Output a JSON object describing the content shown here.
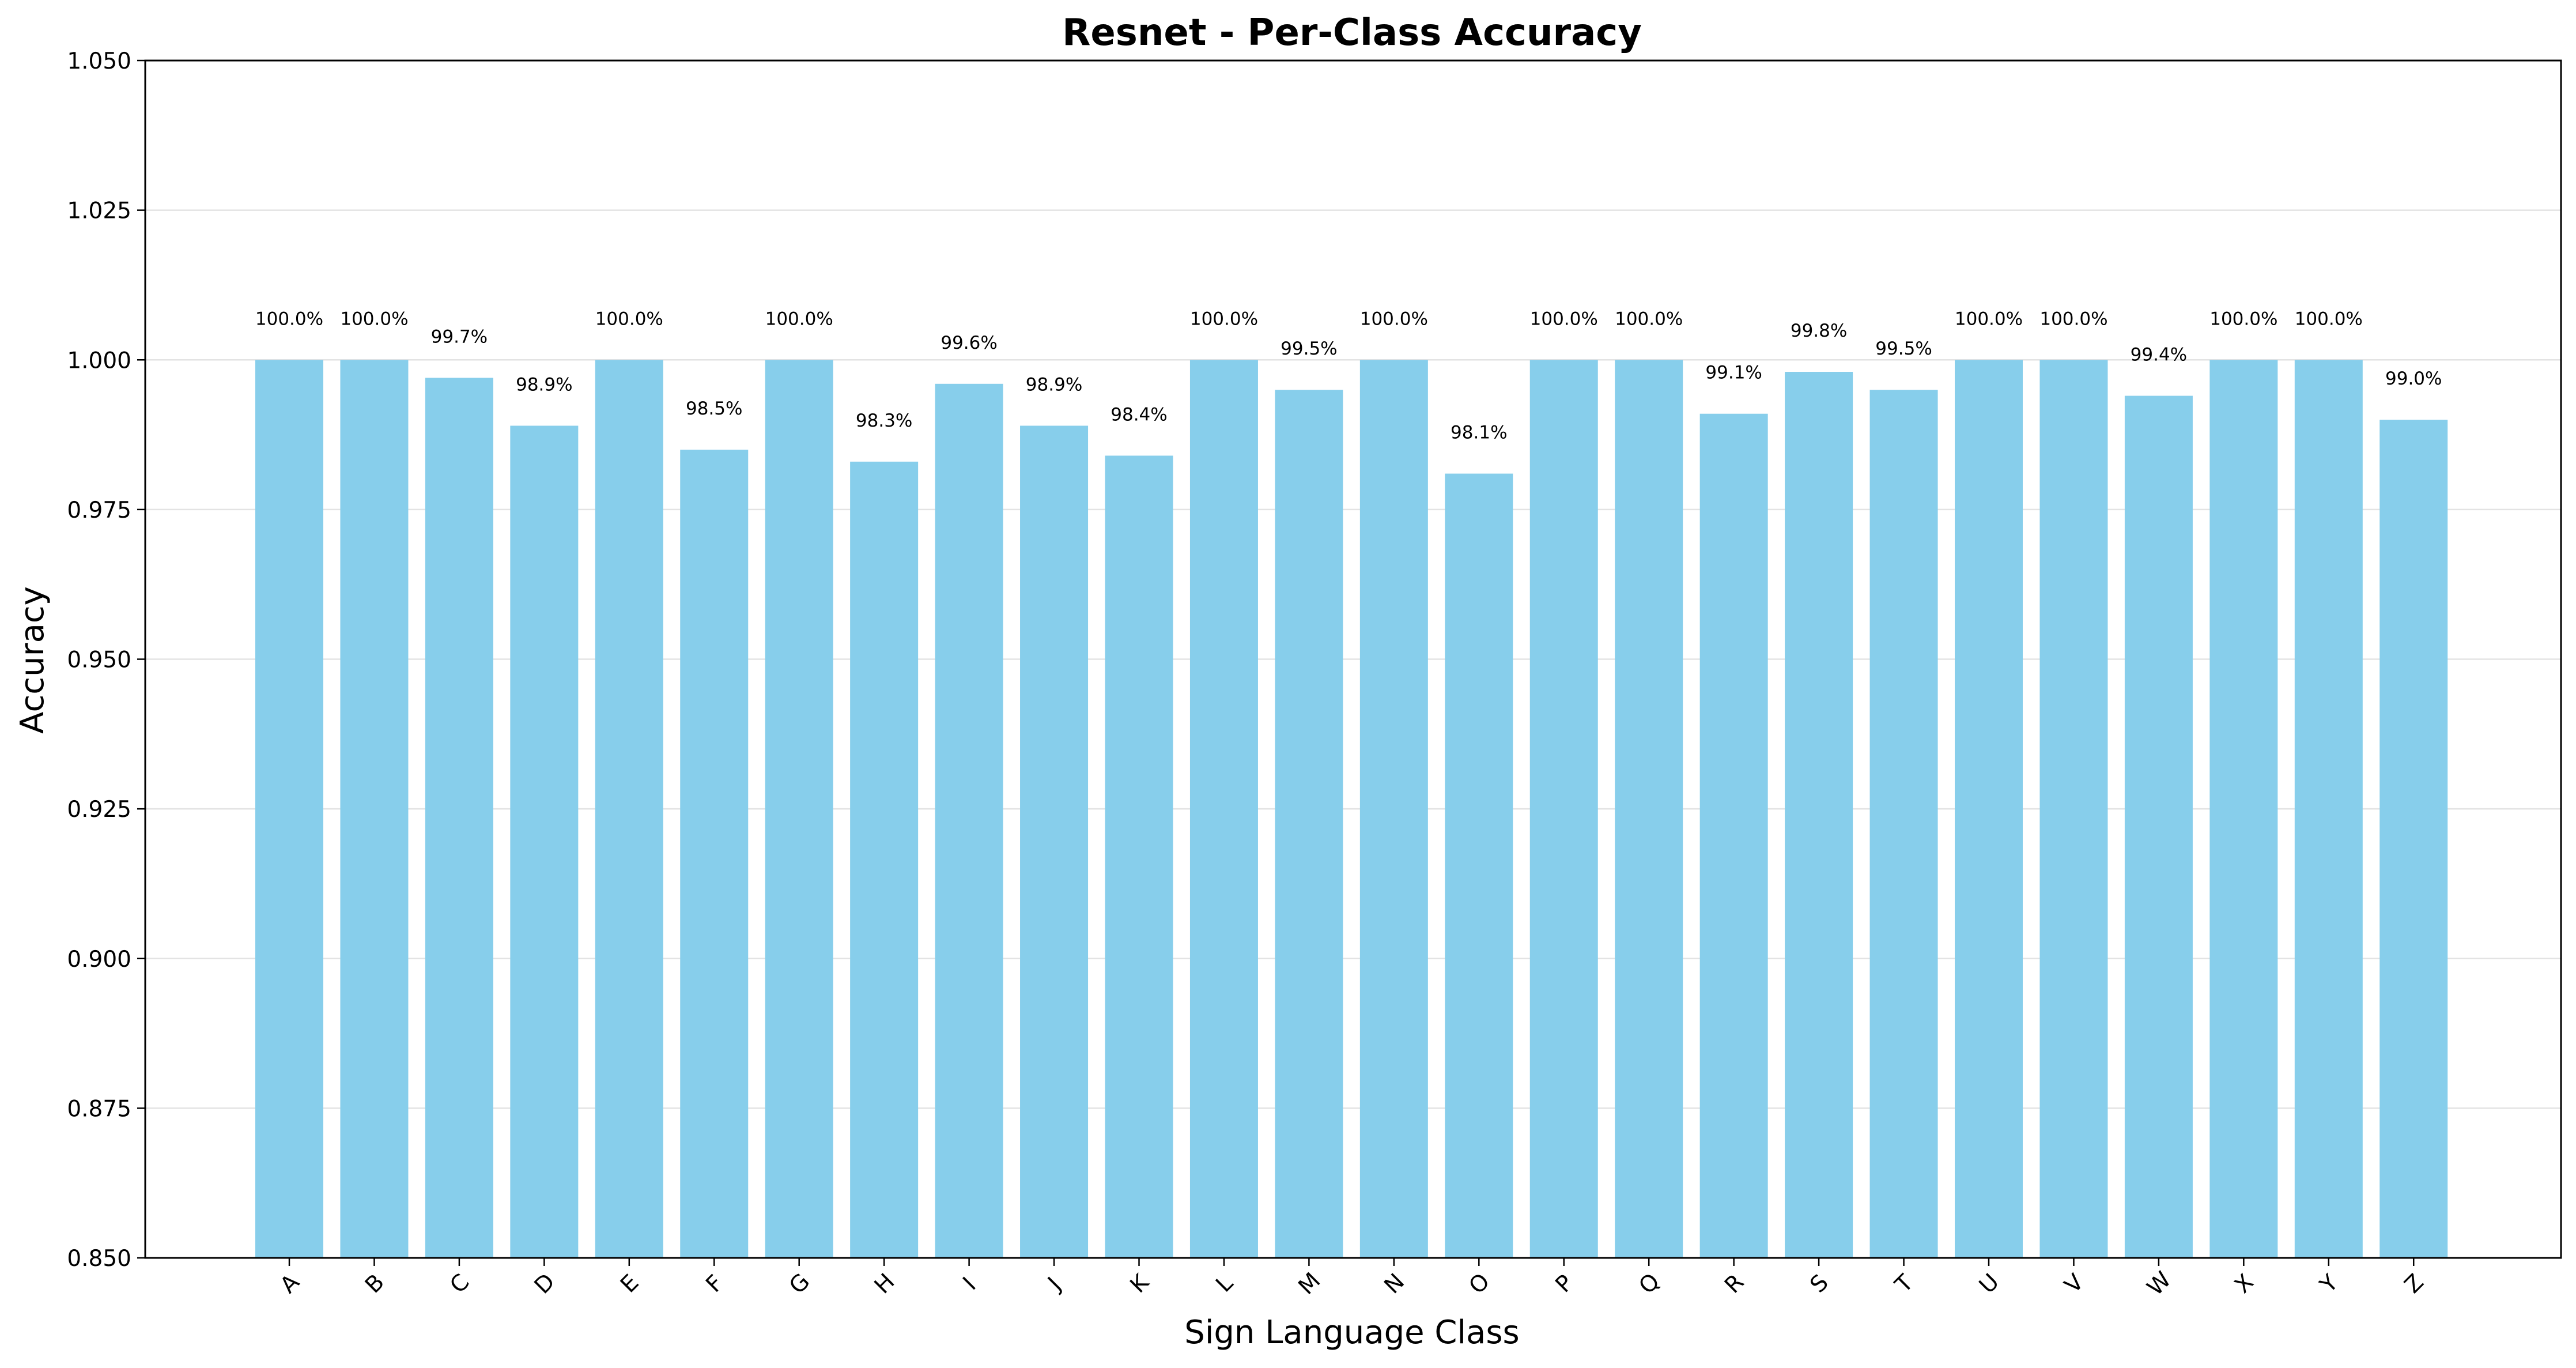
{
  "chart_data": {
    "type": "bar",
    "title": "Resnet - Per-Class Accuracy",
    "xlabel": "Sign Language Class",
    "ylabel": "Accuracy",
    "ylim": [
      0.85,
      1.05
    ],
    "yticks": [
      0.85,
      0.875,
      0.9,
      0.925,
      0.95,
      0.975,
      1.0,
      1.025,
      1.05
    ],
    "ytick_labels": [
      "0.850",
      "0.875",
      "0.900",
      "0.925",
      "0.950",
      "0.975",
      "1.000",
      "1.025",
      "1.050"
    ],
    "grid": "y",
    "bar_color": "#87CEEB",
    "categories": [
      "A",
      "B",
      "C",
      "D",
      "E",
      "F",
      "G",
      "H",
      "I",
      "J",
      "K",
      "L",
      "M",
      "N",
      "O",
      "P",
      "Q",
      "R",
      "S",
      "T",
      "U",
      "V",
      "W",
      "X",
      "Y",
      "Z"
    ],
    "values": [
      1.0,
      1.0,
      0.997,
      0.989,
      1.0,
      0.985,
      1.0,
      0.983,
      0.996,
      0.989,
      0.984,
      1.0,
      0.995,
      1.0,
      0.981,
      1.0,
      1.0,
      0.991,
      0.998,
      0.995,
      1.0,
      1.0,
      0.994,
      1.0,
      1.0,
      0.99
    ],
    "data_labels": [
      "100.0%",
      "100.0%",
      "99.7%",
      "98.9%",
      "100.0%",
      "98.5%",
      "100.0%",
      "98.3%",
      "99.6%",
      "98.9%",
      "98.4%",
      "100.0%",
      "99.5%",
      "100.0%",
      "98.1%",
      "100.0%",
      "100.0%",
      "99.1%",
      "99.8%",
      "99.5%",
      "100.0%",
      "100.0%",
      "99.4%",
      "100.0%",
      "100.0%",
      "99.0%"
    ]
  }
}
